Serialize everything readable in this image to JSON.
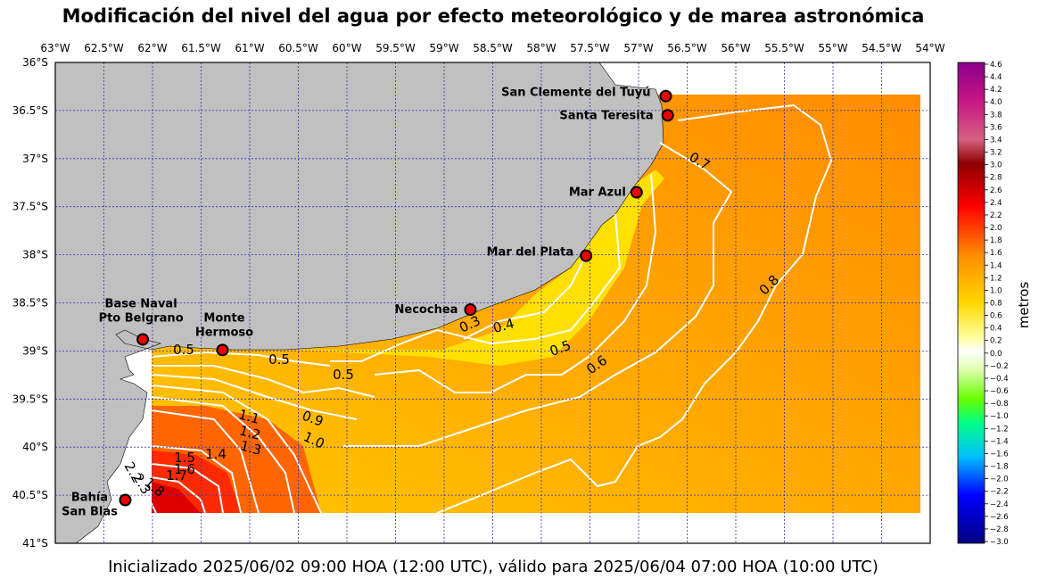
{
  "title": "Modificación del nivel del agua por efecto meteorológico y de marea astronómica",
  "footer": "Inicializado 2025/06/02 09:00 HOA (12:00 UTC), válido para 2025/06/04 07:00 HOA (10:00 UTC)",
  "map": {
    "lon_range": [
      -63.0,
      -54.0
    ],
    "lat_range": [
      -41.0,
      -36.0
    ],
    "grid": true,
    "lon_ticks": [
      "63°W",
      "62.5°W",
      "62°W",
      "61.5°W",
      "61°W",
      "60.5°W",
      "60°W",
      "59.5°W",
      "59°W",
      "58.5°W",
      "58°W",
      "57.5°W",
      "57°W",
      "56.5°W",
      "56°W",
      "55.5°W",
      "55°W",
      "54.5°W",
      "54°W"
    ],
    "lat_ticks": [
      "36°S",
      "36.5°S",
      "37°S",
      "37.5°S",
      "38°S",
      "38.5°S",
      "39°S",
      "39.5°S",
      "40°S",
      "40.5°S",
      "41°S"
    ],
    "land_color": "#c0c0c0",
    "contour_color": "#ffffff"
  },
  "cities": [
    {
      "name": "San Clemente del Tuyú",
      "lon": -56.72,
      "lat": -36.35
    },
    {
      "name": "Santa Teresita",
      "lon": -56.7,
      "lat": -36.55
    },
    {
      "name": "Mar Azul",
      "lon": -57.02,
      "lat": -37.35
    },
    {
      "name": "Mar del Plata",
      "lon": -57.54,
      "lat": -38.01
    },
    {
      "name": "Necochea",
      "lon": -58.73,
      "lat": -38.57
    },
    {
      "name": "Base Naval\nPto Belgrano",
      "lon": -62.1,
      "lat": -38.88
    },
    {
      "name": "Monte\nHermoso",
      "lon": -61.28,
      "lat": -38.99
    },
    {
      "name": "Bahía\nSan Blas",
      "lon": -62.28,
      "lat": -40.55
    }
  ],
  "contour_labels": [
    "0.5",
    "0.5",
    "0.5",
    "0.3",
    "0.4",
    "0.5",
    "0.6",
    "0.7",
    "0.8",
    "0.9",
    "1.0",
    "1.1",
    "1.2",
    "1.3",
    "1.4",
    "1.5",
    "1.6",
    "1.7",
    "1.8",
    "2.2",
    "2.3"
  ],
  "colorbar": {
    "label": "metros",
    "min": -3.0,
    "max": 4.6,
    "ticks": [
      "4.6",
      "4.4",
      "4.2",
      "4.0",
      "3.8",
      "3.6",
      "3.4",
      "3.2",
      "3.0",
      "2.8",
      "2.6",
      "2.4",
      "2.2",
      "2.0",
      "1.8",
      "1.6",
      "1.4",
      "1.2",
      "1.0",
      "0.8",
      "0.6",
      "0.4",
      "0.2",
      "0.0",
      "−0.2",
      "−0.4",
      "−0.6",
      "−0.8",
      "−1.0",
      "−1.2",
      "−1.4",
      "−1.6",
      "−1.8",
      "−2.0",
      "−2.2",
      "−2.4",
      "−2.6",
      "−2.8",
      "−3.0"
    ]
  }
}
